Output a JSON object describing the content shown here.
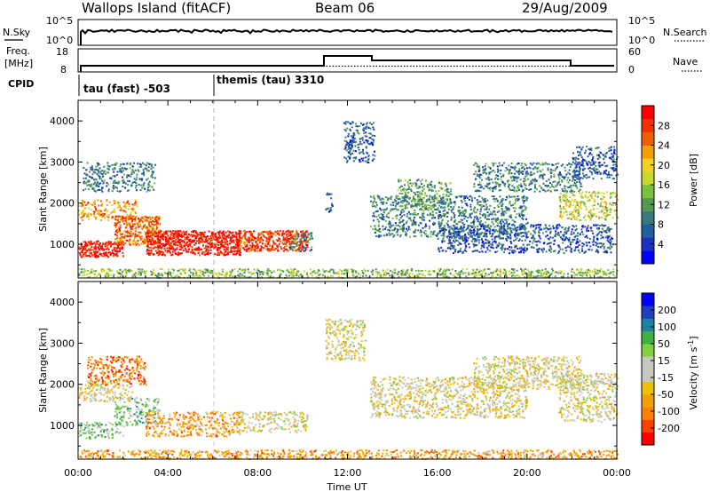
{
  "header": {
    "station": "Wallops Island (fitACF)",
    "beam": "Beam 06",
    "date": "29/Aug/2009"
  },
  "noise_panel": {
    "left_label": "N.Sky",
    "right_label": "N.Search",
    "left_ticks": [
      "10^5",
      "10^0"
    ],
    "right_ticks": [
      "10^5",
      "10^0"
    ]
  },
  "freq_panel": {
    "left_label_line1": "Freq.",
    "left_label_line2": "[MHz]",
    "right_label": "Nave",
    "left_ticks": [
      "18",
      "8"
    ],
    "right_ticks": [
      "60",
      "0"
    ]
  },
  "cpid_panel": {
    "label": "CPID",
    "modes": [
      {
        "text": "tau (fast) -503",
        "start_hour": 0
      },
      {
        "text": "themis (tau) 3310",
        "start_hour": 6.0
      }
    ]
  },
  "chart_data": [
    {
      "type": "heatmap",
      "panel": "power",
      "ylabel": "Slant Range [km]",
      "ylim": [
        180,
        4500
      ],
      "xlim_hours": [
        0,
        24
      ],
      "y_ticks": [
        1000,
        2000,
        3000,
        4000
      ],
      "colorbar": {
        "label": "Power [dB]",
        "ticks": [
          "28",
          "24",
          "20",
          "16",
          "12",
          "8",
          "4"
        ],
        "colors": [
          "#0000ff",
          "#1f2fbf",
          "#2060a0",
          "#3a7a7a",
          "#4f9a4f",
          "#7cc040",
          "#c8d830",
          "#f0d020",
          "#f0a000",
          "#f06000",
          "#f03000",
          "#ff0000"
        ]
      },
      "regions": [
        {
          "t0": 0.0,
          "t1": 2.0,
          "r0": 700,
          "r1": 1100,
          "level": 11
        },
        {
          "t0": 0.0,
          "t1": 2.6,
          "r0": 1600,
          "r1": 2100,
          "level": 8
        },
        {
          "t0": 0.2,
          "t1": 3.4,
          "r0": 2300,
          "r1": 3000,
          "level": 3
        },
        {
          "t0": 1.6,
          "t1": 3.6,
          "r0": 1000,
          "r1": 1700,
          "level": 9
        },
        {
          "t0": 3.0,
          "t1": 7.2,
          "r0": 750,
          "r1": 1350,
          "level": 11
        },
        {
          "t0": 7.0,
          "t1": 10.2,
          "r0": 850,
          "r1": 1350,
          "level": 10
        },
        {
          "t0": 9.4,
          "t1": 10.4,
          "r0": 850,
          "r1": 1300,
          "level": 3
        },
        {
          "t0": 0.0,
          "t1": 24.0,
          "r0": 200,
          "r1": 420,
          "level": 5
        },
        {
          "t0": 11.0,
          "t1": 11.3,
          "r0": 1800,
          "r1": 2300,
          "level": 2
        },
        {
          "t0": 11.8,
          "t1": 13.2,
          "r0": 3000,
          "r1": 4000,
          "level": 2
        },
        {
          "t0": 13.0,
          "t1": 20.0,
          "r0": 1200,
          "r1": 2200,
          "level": 3
        },
        {
          "t0": 14.2,
          "t1": 16.6,
          "r0": 1900,
          "r1": 2600,
          "level": 4
        },
        {
          "t0": 16.0,
          "t1": 23.8,
          "r0": 800,
          "r1": 1500,
          "level": 2
        },
        {
          "t0": 17.6,
          "t1": 22.4,
          "r0": 2300,
          "r1": 3000,
          "level": 3
        },
        {
          "t0": 21.4,
          "t1": 24.0,
          "r0": 1600,
          "r1": 2300,
          "level": 6
        },
        {
          "t0": 22.0,
          "t1": 24.0,
          "r0": 2600,
          "r1": 3400,
          "level": 2
        }
      ]
    },
    {
      "type": "heatmap",
      "panel": "velocity",
      "ylabel": "Slant Range [km]",
      "xlabel": "Time UT",
      "ylim": [
        180,
        4500
      ],
      "xlim_hours": [
        0,
        24
      ],
      "y_ticks": [
        1000,
        2000,
        3000,
        4000
      ],
      "x_tick_labels": [
        "00:00",
        "04:00",
        "08:00",
        "12:00",
        "16:00",
        "20:00",
        "00:00"
      ],
      "x_tick_hours": [
        0,
        4,
        8,
        12,
        16,
        20,
        24
      ],
      "colorbar": {
        "label": "Velocity [m s^-1]",
        "ticks": [
          "200",
          "100",
          "50",
          "15",
          "-15",
          "-50",
          "-100",
          "-200"
        ],
        "colors": [
          "#ff0000",
          "#ff4000",
          "#ff8000",
          "#f0a000",
          "#f0c000",
          "#c8c8c0",
          "#c8c8c0",
          "#80d040",
          "#40b040",
          "#2080a0",
          "#2040c0",
          "#0000ff"
        ]
      },
      "regions": [
        {
          "t0": 0.0,
          "t1": 2.0,
          "r0": 700,
          "r1": 1100,
          "level": 7
        },
        {
          "t0": 0.0,
          "t1": 2.4,
          "r0": 1600,
          "r1": 2100,
          "level": 5
        },
        {
          "t0": 0.4,
          "t1": 3.0,
          "r0": 2000,
          "r1": 2700,
          "level": 2
        },
        {
          "t0": 1.6,
          "t1": 3.6,
          "r0": 1000,
          "r1": 1700,
          "level": 7
        },
        {
          "t0": 3.0,
          "t1": 7.2,
          "r0": 750,
          "r1": 1350,
          "level": 3
        },
        {
          "t0": 7.0,
          "t1": 10.2,
          "r0": 850,
          "r1": 1350,
          "level": 5
        },
        {
          "t0": 0.0,
          "t1": 24.0,
          "r0": 200,
          "r1": 420,
          "level": 3
        },
        {
          "t0": 11.0,
          "t1": 12.8,
          "r0": 2600,
          "r1": 3600,
          "level": 5
        },
        {
          "t0": 13.0,
          "t1": 20.0,
          "r0": 1200,
          "r1": 2200,
          "level": 5
        },
        {
          "t0": 17.6,
          "t1": 22.4,
          "r0": 1900,
          "r1": 2700,
          "level": 5
        },
        {
          "t0": 21.4,
          "t1": 24.0,
          "r0": 1100,
          "r1": 2300,
          "level": 5
        }
      ]
    }
  ]
}
